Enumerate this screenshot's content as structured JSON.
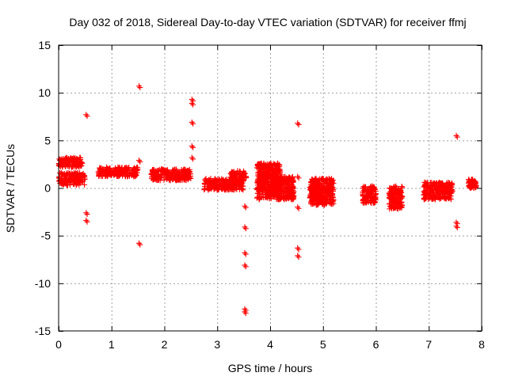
{
  "chart_data": {
    "type": "scatter",
    "title": "Day 032 of 2018, Sidereal Day-to-day VTEC variation (SDTVAR) for receiver ffmj",
    "xlabel": "GPS time / hours",
    "ylabel": "SDTVAR / TECUs",
    "xlim": [
      0,
      8
    ],
    "ylim": [
      -15,
      15
    ],
    "xticks": [
      "0",
      "1",
      "2",
      "3",
      "4",
      "5",
      "6",
      "7",
      "8"
    ],
    "yticks": [
      "15",
      "10",
      "5",
      "0",
      "-5",
      "-10",
      "-15"
    ],
    "grid": true,
    "marker": "+",
    "point_color": "#ff0000",
    "clusters": [
      {
        "x": [
          0.0,
          0.5
        ],
        "y": [
          0.3,
          1.6
        ]
      },
      {
        "x": [
          0.0,
          0.45
        ],
        "y": [
          2.2,
          3.2
        ]
      },
      {
        "x": [
          0.75,
          1.5
        ],
        "y": [
          1.2,
          2.2
        ]
      },
      {
        "x": [
          1.75,
          2.5
        ],
        "y": [
          0.8,
          2.0
        ]
      },
      {
        "x": [
          2.75,
          3.5
        ],
        "y": [
          -0.2,
          1.0
        ]
      },
      {
        "x": [
          3.25,
          3.55
        ],
        "y": [
          1.0,
          1.8
        ]
      },
      {
        "x": [
          3.75,
          4.45
        ],
        "y": [
          -1.2,
          1.2
        ]
      },
      {
        "x": [
          3.75,
          4.2
        ],
        "y": [
          1.2,
          2.6
        ]
      },
      {
        "x": [
          4.75,
          5.2
        ],
        "y": [
          -1.8,
          1.0
        ]
      },
      {
        "x": [
          5.75,
          6.0
        ],
        "y": [
          -1.6,
          0.2
        ]
      },
      {
        "x": [
          6.25,
          6.5
        ],
        "y": [
          -2.2,
          0.2
        ]
      },
      {
        "x": [
          6.9,
          7.45
        ],
        "y": [
          -1.2,
          0.6
        ]
      },
      {
        "x": [
          7.75,
          7.9
        ],
        "y": [
          0.0,
          0.9
        ]
      }
    ],
    "outliers": [
      {
        "x": 0.52,
        "y": 7.7
      },
      {
        "x": 0.52,
        "y": -2.6
      },
      {
        "x": 0.52,
        "y": -3.4
      },
      {
        "x": 1.52,
        "y": 10.7
      },
      {
        "x": 1.52,
        "y": 2.9
      },
      {
        "x": 1.52,
        "y": -5.8
      },
      {
        "x": 2.52,
        "y": 9.3
      },
      {
        "x": 2.52,
        "y": 8.9
      },
      {
        "x": 2.52,
        "y": 6.9
      },
      {
        "x": 2.52,
        "y": 4.4
      },
      {
        "x": 2.52,
        "y": 3.2
      },
      {
        "x": 3.52,
        "y": -1.9
      },
      {
        "x": 3.52,
        "y": -4.1
      },
      {
        "x": 3.52,
        "y": -6.8
      },
      {
        "x": 3.52,
        "y": -8.1
      },
      {
        "x": 3.52,
        "y": -12.7
      },
      {
        "x": 3.52,
        "y": -13.0
      },
      {
        "x": 4.52,
        "y": 6.8
      },
      {
        "x": 4.52,
        "y": 1.2
      },
      {
        "x": 4.52,
        "y": -2.0
      },
      {
        "x": 4.52,
        "y": -6.3
      },
      {
        "x": 4.52,
        "y": -7.1
      },
      {
        "x": 7.52,
        "y": 5.5
      },
      {
        "x": 7.52,
        "y": -3.6
      },
      {
        "x": 7.52,
        "y": -4.0
      }
    ]
  }
}
